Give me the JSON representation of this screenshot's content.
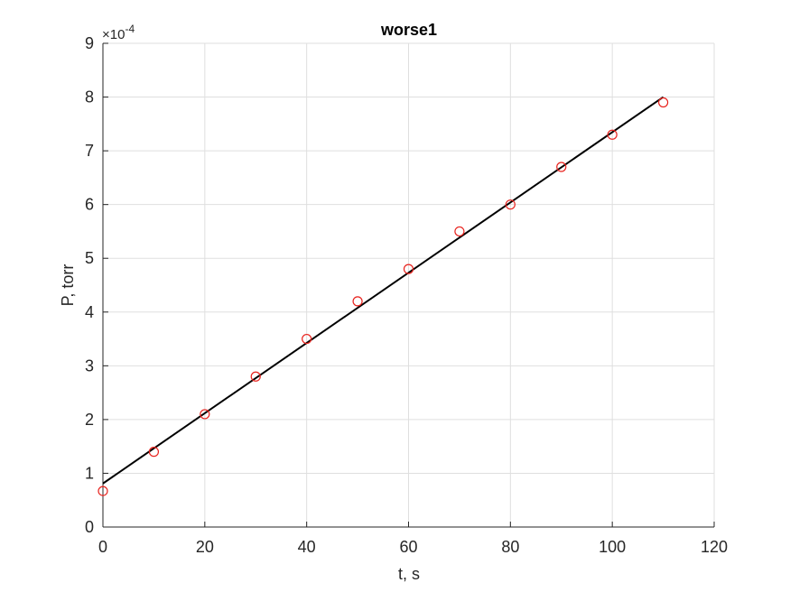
{
  "chart_data": {
    "type": "scatter",
    "title": "worse1",
    "xlabel": "t, s",
    "ylabel": "P, torr",
    "y_exponent": "×10",
    "y_exponent_power": "-4",
    "xlim": [
      0,
      120
    ],
    "ylim": [
      0,
      9
    ],
    "xticks": [
      0,
      20,
      40,
      60,
      80,
      100,
      120
    ],
    "yticks": [
      0,
      1,
      2,
      3,
      4,
      5,
      6,
      7,
      8,
      9
    ],
    "grid": true,
    "points": {
      "x": [
        0,
        10,
        20,
        30,
        40,
        50,
        60,
        70,
        80,
        90,
        100,
        110
      ],
      "y": [
        0.67,
        1.4,
        2.1,
        2.8,
        3.5,
        4.2,
        4.8,
        5.5,
        6.0,
        6.7,
        7.3,
        7.9
      ],
      "color": "#e8231e",
      "marker": "circle"
    },
    "fit_line": {
      "x": [
        0,
        110
      ],
      "y": [
        0.81,
        8.0
      ],
      "color": "#000000"
    }
  }
}
